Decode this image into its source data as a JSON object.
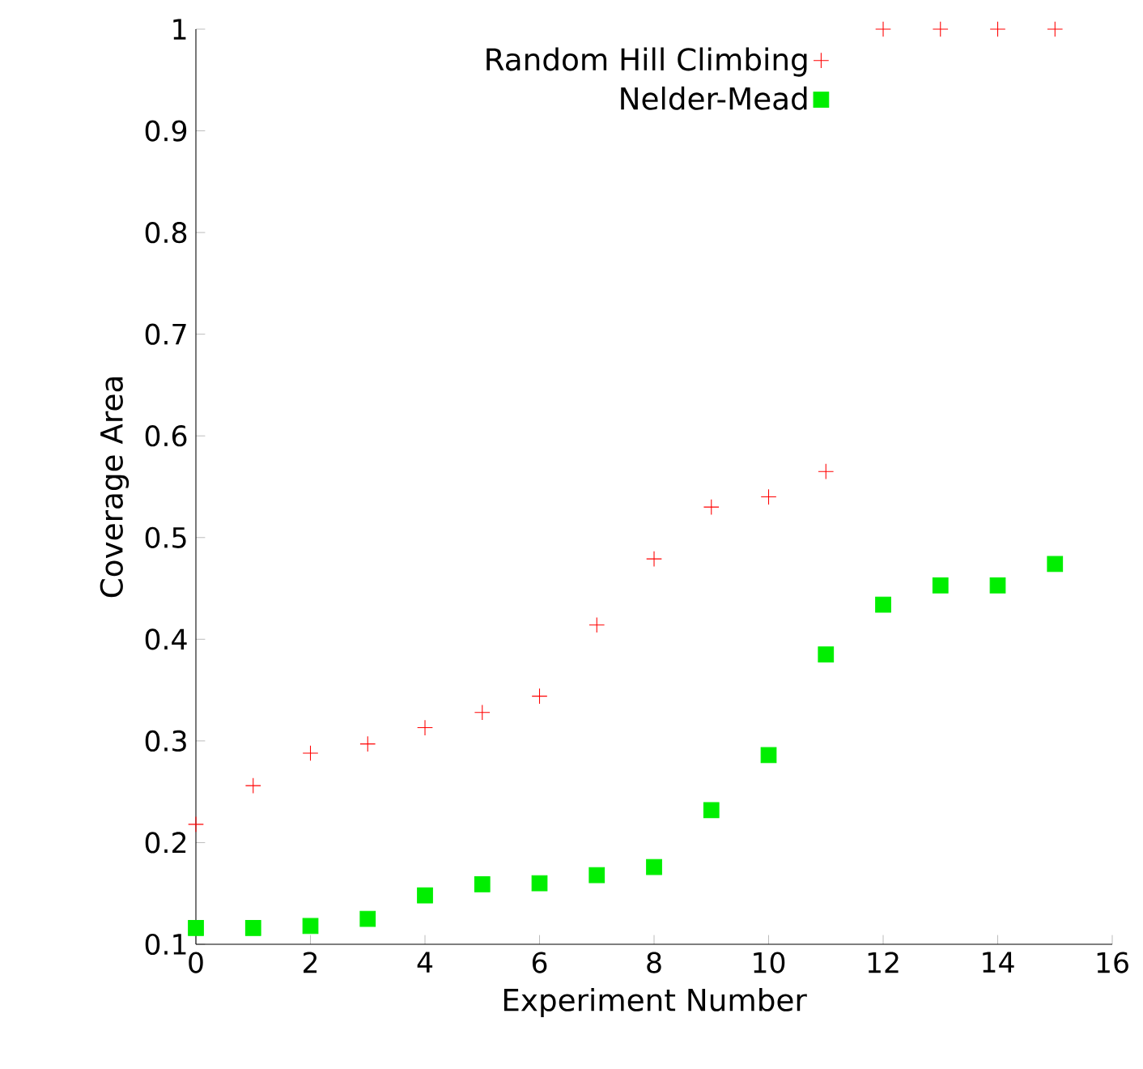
{
  "chart_data": {
    "type": "scatter",
    "xlabel": "Experiment Number",
    "ylabel": "Coverage Area",
    "x": [
      0,
      1,
      2,
      3,
      4,
      5,
      6,
      7,
      8,
      9,
      10,
      11,
      12,
      13,
      14,
      15
    ],
    "series": [
      {
        "name": "Random Hill Climbing",
        "color": "#ff0000",
        "marker": "cross",
        "values": [
          0.218,
          0.256,
          0.288,
          0.297,
          0.313,
          0.328,
          0.344,
          0.414,
          0.479,
          0.53,
          0.54,
          0.565,
          1.0,
          1.0,
          1.0,
          1.0
        ]
      },
      {
        "name": "Nelder-Mead",
        "color": "#00ee00",
        "marker": "square",
        "values": [
          0.116,
          0.116,
          0.118,
          0.125,
          0.148,
          0.159,
          0.16,
          0.168,
          0.176,
          0.232,
          0.286,
          0.385,
          0.434,
          0.453,
          0.453,
          0.474
        ]
      }
    ],
    "xlim": [
      0,
      16
    ],
    "ylim": [
      0.1,
      1
    ],
    "xticks": [
      0,
      2,
      4,
      6,
      8,
      10,
      12,
      14,
      16
    ],
    "yticks": [
      0.1,
      0.2,
      0.3,
      0.4,
      0.5,
      0.6,
      0.7,
      0.8,
      0.9,
      1
    ],
    "legend": "top",
    "grid": false
  }
}
